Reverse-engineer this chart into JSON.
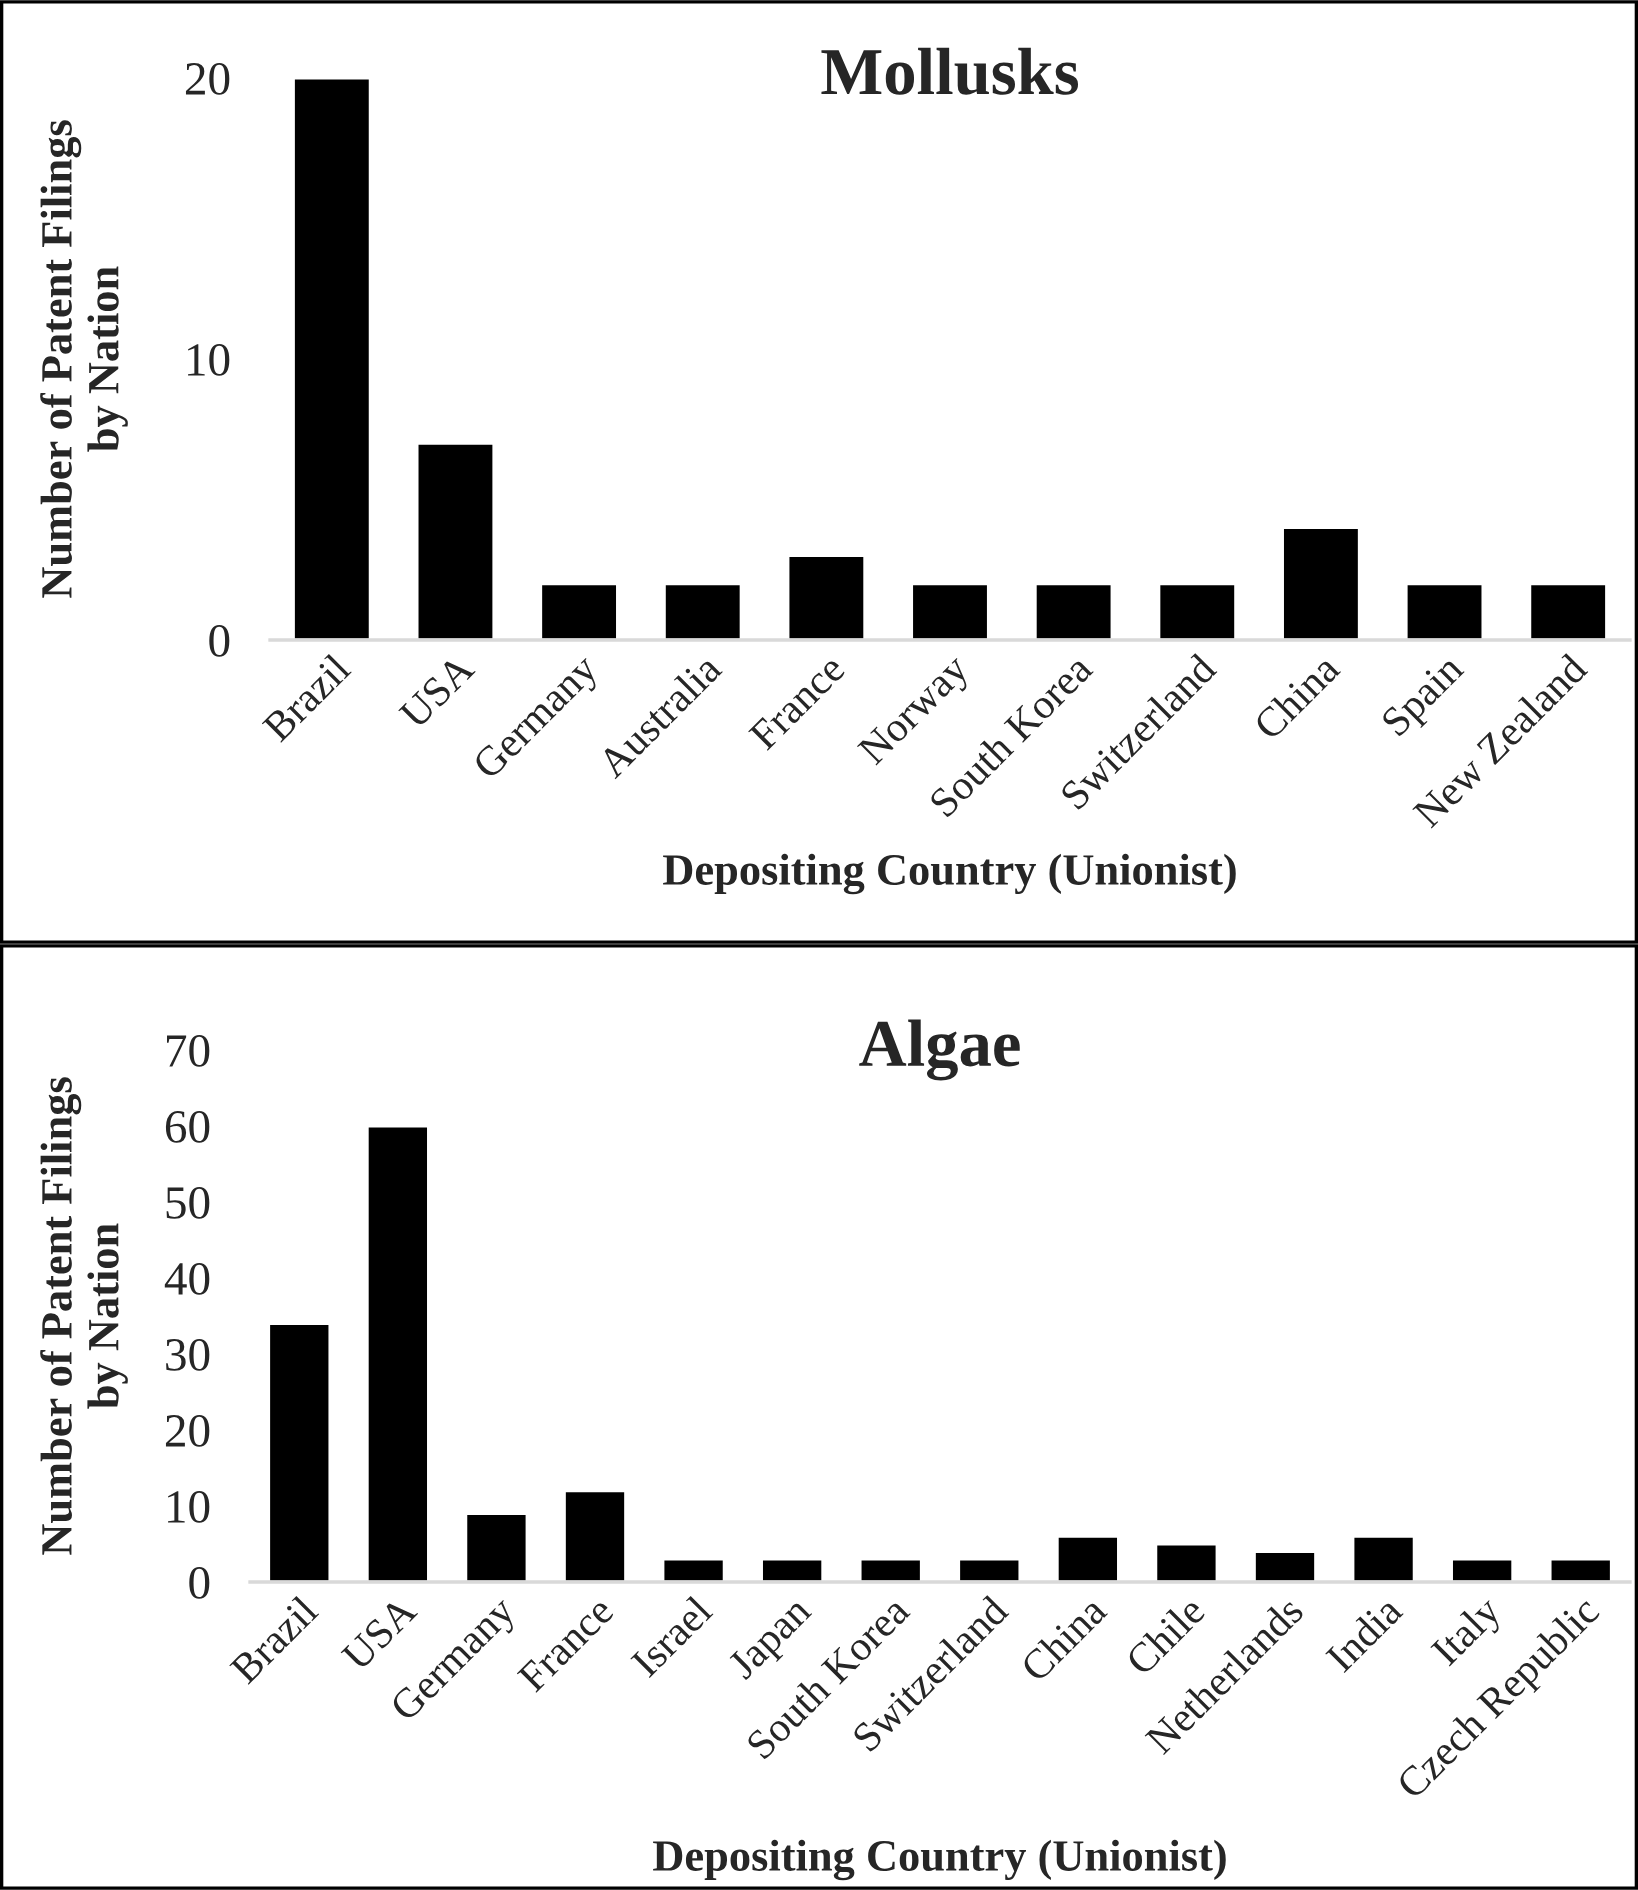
{
  "chart_data": [
    {
      "type": "bar",
      "title": "Mollusks",
      "xlabel": "Depositing Country (Unionist)",
      "ylabel": "Number of Patent Filings\nby Nation",
      "categories": [
        "Brazil",
        "USA",
        "Germany",
        "Australia",
        "France",
        "Norway",
        "South Korea",
        "Switzerland",
        "China",
        "Spain",
        "New Zealand"
      ],
      "series": [
        {
          "color": "#000000",
          "values": [
            20,
            7,
            2,
            2,
            3,
            2,
            2,
            2,
            4,
            2,
            2
          ]
        }
      ],
      "ylim": [
        0,
        20
      ],
      "yticks": [
        0,
        10,
        20
      ],
      "grid": false,
      "legend": false
    },
    {
      "type": "bar",
      "title": "Algae",
      "xlabel": "Depositing Country (Unionist)",
      "ylabel": "Number of Patent Filings\nby Nation",
      "categories": [
        "Brazil",
        "USA",
        "Germany",
        "France",
        "Israel",
        "Japan",
        "South Korea",
        "Switzerland",
        "China",
        "Chile",
        "Netherlands",
        "India",
        "Italy",
        "Czech Republic"
      ],
      "series": [
        {
          "color": "#000000",
          "values": [
            34,
            60,
            9,
            12,
            3,
            3,
            3,
            3,
            6,
            5,
            4,
            6,
            3,
            3
          ]
        }
      ],
      "ylim": [
        0,
        70
      ],
      "yticks": [
        0,
        10,
        20,
        30,
        40,
        50,
        60,
        70
      ],
      "grid": false,
      "legend": false
    }
  ]
}
